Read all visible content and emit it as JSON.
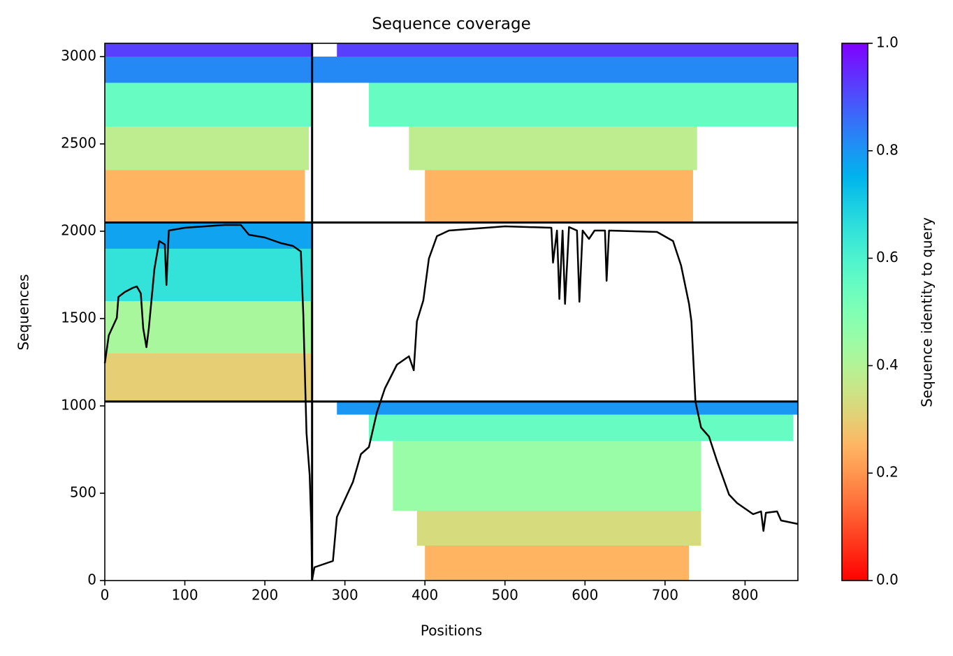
{
  "chart_data": {
    "type": "heatmap",
    "title": "Sequence coverage",
    "x_label": "Positions",
    "y_label": "Sequences",
    "xlim": [
      0,
      866
    ],
    "ylim": [
      0,
      3076
    ],
    "xticks": [
      0,
      100,
      200,
      300,
      400,
      500,
      600,
      700,
      800
    ],
    "yticks": [
      0,
      500,
      1000,
      1500,
      2000,
      2500,
      3000
    ],
    "colorbar": {
      "label": "Sequence identity to query",
      "colormap": "rainbow_r",
      "lim": [
        0,
        1
      ],
      "ticks": [
        {
          "value": 0,
          "label": "0.0"
        },
        {
          "value": 0.2,
          "label": "0.2"
        },
        {
          "value": 0.4,
          "label": "0.4"
        },
        {
          "value": 0.6,
          "label": "0.6"
        },
        {
          "value": 0.8,
          "label": "0.8"
        },
        {
          "value": 1,
          "label": "1.0"
        }
      ]
    },
    "regions": [
      {
        "x": [
          0,
          259
        ],
        "y": [
          3000,
          3076
        ],
        "identity": 0.92
      },
      {
        "x": [
          0,
          259
        ],
        "y": [
          2850,
          3000
        ],
        "identity": 0.82
      },
      {
        "x": [
          0,
          259
        ],
        "y": [
          2600,
          2850
        ],
        "identity": 0.55
      },
      {
        "x": [
          0,
          255
        ],
        "y": [
          2350,
          2600
        ],
        "identity": 0.38
      },
      {
        "x": [
          0,
          250
        ],
        "y": [
          2050,
          2350
        ],
        "identity": 0.25
      },
      {
        "x": [
          290,
          866
        ],
        "y": [
          3000,
          3076
        ],
        "identity": 0.92
      },
      {
        "x": [
          260,
          866
        ],
        "y": [
          2850,
          3000
        ],
        "identity": 0.82
      },
      {
        "x": [
          330,
          866
        ],
        "y": [
          2600,
          2850
        ],
        "identity": 0.55
      },
      {
        "x": [
          380,
          740
        ],
        "y": [
          2350,
          2600
        ],
        "identity": 0.38
      },
      {
        "x": [
          400,
          735
        ],
        "y": [
          2050,
          2350
        ],
        "identity": 0.25
      },
      {
        "x": [
          0,
          259
        ],
        "y": [
          1900,
          2050
        ],
        "identity": 0.78
      },
      {
        "x": [
          0,
          259
        ],
        "y": [
          1600,
          1900
        ],
        "identity": 0.65
      },
      {
        "x": [
          0,
          259
        ],
        "y": [
          1300,
          1600
        ],
        "identity": 0.42
      },
      {
        "x": [
          0,
          259
        ],
        "y": [
          1025,
          1300
        ],
        "identity": 0.3
      },
      {
        "x": [
          290,
          866
        ],
        "y": [
          950,
          1025
        ],
        "identity": 0.8
      },
      {
        "x": [
          330,
          860
        ],
        "y": [
          800,
          950
        ],
        "identity": 0.55
      },
      {
        "x": [
          360,
          745
        ],
        "y": [
          400,
          800
        ],
        "identity": 0.45
      },
      {
        "x": [
          390,
          745
        ],
        "y": [
          200,
          400
        ],
        "identity": 0.33
      },
      {
        "x": [
          400,
          730
        ],
        "y": [
          0,
          200
        ],
        "identity": 0.25
      }
    ],
    "boundaries_x": [
      259
    ],
    "boundaries_y": [
      1025,
      2050
    ],
    "coverage": {
      "color": "#000000",
      "x": [
        0,
        5,
        15,
        17,
        25,
        35,
        40,
        45,
        48,
        52,
        55,
        62,
        68,
        75,
        77,
        80,
        100,
        150,
        170,
        180,
        200,
        220,
        235,
        245,
        248,
        252,
        256,
        258,
        259,
        262,
        285,
        290,
        300,
        310,
        320,
        330,
        340,
        350,
        365,
        380,
        386,
        390,
        398,
        405,
        415,
        430,
        500,
        558,
        560,
        565,
        568,
        572,
        575,
        580,
        590,
        593,
        597,
        605,
        612,
        625,
        627,
        630,
        690,
        710,
        720,
        730,
        733,
        738,
        745,
        755,
        765,
        780,
        790,
        800,
        810,
        820,
        823,
        826,
        840,
        845,
        866
      ],
      "y": [
        1244,
        1404,
        1504,
        1624,
        1652,
        1676,
        1684,
        1644,
        1444,
        1336,
        1444,
        1784,
        1944,
        1924,
        1692,
        2004,
        2020,
        2036,
        2036,
        1980,
        1964,
        1932,
        1916,
        1884,
        1524,
        844,
        604,
        324,
        4,
        76,
        112,
        364,
        464,
        564,
        724,
        764,
        964,
        1100,
        1236,
        1284,
        1204,
        1484,
        1604,
        1844,
        1972,
        2004,
        2028,
        2020,
        1820,
        2004,
        1612,
        2004,
        1584,
        2024,
        2004,
        1596,
        2004,
        1956,
        2004,
        2004,
        1716,
        2004,
        1996,
        1944,
        1804,
        1584,
        1484,
        1024,
        876,
        824,
        684,
        492,
        444,
        412,
        380,
        396,
        284,
        388,
        396,
        344,
        324
      ]
    }
  }
}
